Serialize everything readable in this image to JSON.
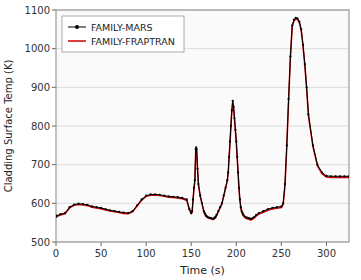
{
  "chart_data": {
    "type": "line",
    "xlabel": "Time (s)",
    "ylabel": "Cladding Surface Temp (K)",
    "xlim": [
      0,
      325
    ],
    "ylim": [
      500,
      1100
    ],
    "xticks": [
      0,
      50,
      100,
      150,
      200,
      250,
      300
    ],
    "yticks": [
      500,
      600,
      700,
      800,
      900,
      1000,
      1100
    ],
    "grid": "y",
    "legend": "upper left",
    "x": [
      0,
      1,
      5,
      10,
      15,
      20,
      25,
      30,
      35,
      40,
      45,
      50,
      55,
      60,
      65,
      70,
      75,
      80,
      85,
      90,
      95,
      100,
      105,
      110,
      115,
      120,
      125,
      130,
      135,
      140,
      145,
      148,
      150,
      151,
      152,
      153,
      154,
      155,
      155.5,
      156,
      157,
      158,
      160,
      162,
      164,
      165,
      166,
      167,
      168,
      170,
      172,
      174,
      175,
      176,
      177,
      178,
      180,
      182,
      184,
      186,
      188,
      190,
      191,
      192,
      193,
      194,
      195,
      196,
      197,
      198,
      199,
      200,
      201,
      202,
      203,
      204,
      205,
      206,
      207,
      208,
      210,
      212,
      214,
      216,
      218,
      220,
      222,
      225,
      230,
      235,
      240,
      245,
      250,
      252,
      254,
      256,
      258,
      260,
      262,
      264,
      266,
      268,
      270,
      272,
      274,
      276,
      278,
      280,
      285,
      290,
      295,
      300,
      305,
      310,
      315,
      320,
      325
    ],
    "series": [
      {
        "name": "FAMILY-MARS",
        "color": "#000000",
        "marker": "dot",
        "values": [
          565,
          568,
          572,
          575,
          590,
          597,
          599,
          598,
          596,
          592,
          590,
          588,
          585,
          582,
          580,
          578,
          576,
          575,
          580,
          595,
          610,
          620,
          623,
          623,
          622,
          620,
          618,
          617,
          616,
          614,
          610,
          585,
          575,
          580,
          610,
          640,
          660,
          740,
          745,
          740,
          690,
          650,
          620,
          600,
          580,
          575,
          570,
          567,
          565,
          563,
          562,
          560,
          561,
          563,
          565,
          570,
          580,
          590,
          600,
          620,
          640,
          660,
          680,
          720,
          760,
          800,
          840,
          865,
          850,
          820,
          790,
          760,
          720,
          680,
          640,
          610,
          590,
          580,
          575,
          570,
          565,
          563,
          562,
          560,
          562,
          565,
          570,
          575,
          580,
          585,
          588,
          590,
          592,
          600,
          650,
          750,
          870,
          980,
          1060,
          1075,
          1080,
          1078,
          1070,
          1050,
          1010,
          960,
          900,
          830,
          750,
          700,
          680,
          671,
          670,
          670,
          670,
          670,
          670
        ]
      },
      {
        "name": "FAMILY-FRAPTRAN",
        "color": "#cc0000",
        "values": [
          563,
          566,
          570,
          573,
          588,
          595,
          597,
          596,
          594,
          590,
          588,
          586,
          583,
          580,
          578,
          576,
          574,
          573,
          578,
          593,
          608,
          618,
          621,
          621,
          620,
          618,
          616,
          615,
          614,
          612,
          608,
          583,
          573,
          577,
          607,
          638,
          657,
          738,
          743,
          738,
          688,
          648,
          618,
          598,
          578,
          573,
          568,
          565,
          563,
          561,
          560,
          558,
          559,
          561,
          563,
          568,
          578,
          588,
          598,
          618,
          638,
          658,
          677,
          717,
          757,
          797,
          837,
          862,
          847,
          817,
          787,
          757,
          717,
          677,
          637,
          607,
          587,
          577,
          572,
          567,
          562,
          560,
          559,
          557,
          559,
          562,
          567,
          572,
          577,
          582,
          585,
          587,
          589,
          597,
          647,
          747,
          867,
          977,
          1057,
          1072,
          1077,
          1075,
          1067,
          1047,
          1007,
          957,
          897,
          827,
          747,
          697,
          677,
          668,
          667,
          667,
          667,
          667,
          667
        ]
      }
    ]
  }
}
